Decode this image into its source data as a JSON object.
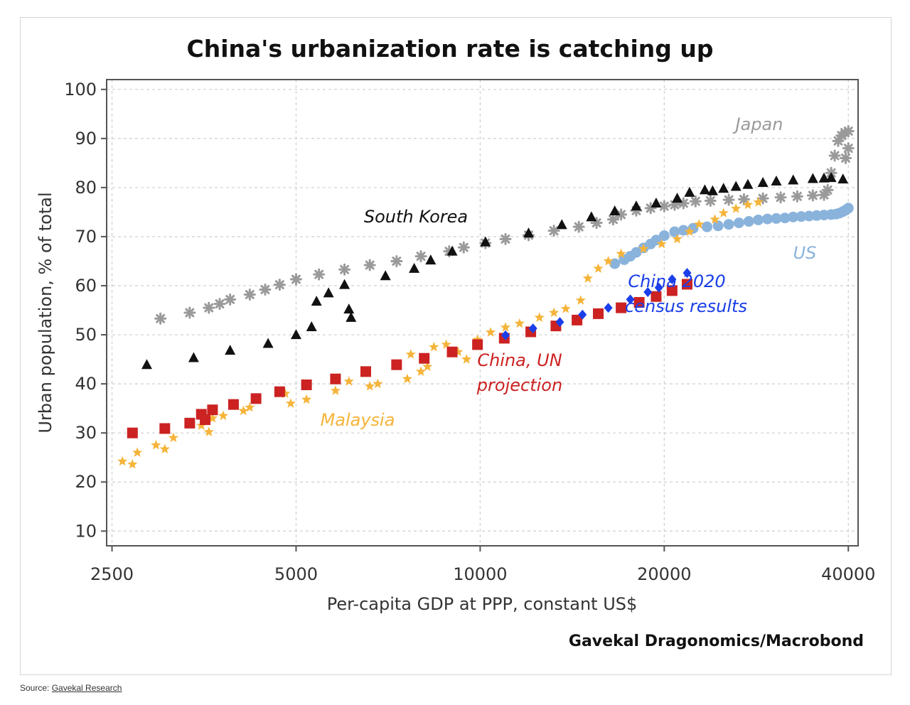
{
  "source": {
    "label": "Source:",
    "link_text": "Gavekal Research"
  },
  "chart_data": {
    "type": "scatter",
    "title": "China's urbanization rate is catching up",
    "xlabel": "Per-capita GDP at PPP, constant US$",
    "ylabel": "Urban population, % of total",
    "credit": "Gavekal Dragonomics/Macrobond",
    "x_scale": "log",
    "xlim": [
      2450,
      41500
    ],
    "ylim": [
      7,
      102
    ],
    "x_ticks": [
      2500,
      5000,
      10000,
      20000,
      40000
    ],
    "y_ticks": [
      10,
      20,
      30,
      40,
      50,
      60,
      70,
      80,
      90,
      100
    ],
    "grid": true,
    "series": [
      {
        "name": "Japan",
        "marker": "asterisk",
        "color": "#9a9a9a",
        "label_color": "#9a9a9a",
        "points": [
          [
            3000,
            53.3
          ],
          [
            3350,
            54.5
          ],
          [
            3600,
            55.5
          ],
          [
            3750,
            56.3
          ],
          [
            3900,
            57.2
          ],
          [
            4200,
            58.2
          ],
          [
            4450,
            59.2
          ],
          [
            4700,
            60.2
          ],
          [
            5000,
            61.3
          ],
          [
            5450,
            62.3
          ],
          [
            6000,
            63.3
          ],
          [
            6600,
            64.2
          ],
          [
            7300,
            65.0
          ],
          [
            8000,
            66.0
          ],
          [
            8900,
            67.0
          ],
          [
            9400,
            67.8
          ],
          [
            10200,
            68.7
          ],
          [
            11000,
            69.5
          ],
          [
            12000,
            70.3
          ],
          [
            13200,
            71.2
          ],
          [
            14500,
            72.0
          ],
          [
            15500,
            72.8
          ],
          [
            16500,
            73.5
          ],
          [
            17000,
            74.5
          ],
          [
            18000,
            75.3
          ],
          [
            19000,
            75.8
          ],
          [
            20000,
            76.2
          ],
          [
            20800,
            76.5
          ],
          [
            21500,
            76.8
          ],
          [
            22500,
            77.2
          ],
          [
            23800,
            77.3
          ],
          [
            25500,
            77.5
          ],
          [
            27000,
            77.6
          ],
          [
            29000,
            77.8
          ],
          [
            31000,
            78.0
          ],
          [
            33000,
            78.2
          ],
          [
            35000,
            78.4
          ],
          [
            36500,
            78.5
          ],
          [
            37000,
            79.5
          ],
          [
            37500,
            83.0
          ],
          [
            38000,
            86.5
          ],
          [
            38500,
            89.5
          ],
          [
            39000,
            90.6
          ],
          [
            39500,
            91.2
          ],
          [
            40000,
            91.5
          ],
          [
            40000,
            88.0
          ],
          [
            39600,
            86.0
          ]
        ]
      },
      {
        "name": "South Korea",
        "marker": "triangle",
        "color": "#111111",
        "label_color": "#111111",
        "points": [
          [
            2850,
            43.9
          ],
          [
            3400,
            45.3
          ],
          [
            3900,
            46.8
          ],
          [
            4500,
            48.2
          ],
          [
            5000,
            50.0
          ],
          [
            5300,
            51.6
          ],
          [
            5400,
            56.8
          ],
          [
            5650,
            58.5
          ],
          [
            6000,
            60.2
          ],
          [
            6100,
            55.2
          ],
          [
            6150,
            53.5
          ],
          [
            7000,
            62.0
          ],
          [
            7800,
            63.5
          ],
          [
            8300,
            65.2
          ],
          [
            9000,
            67.0
          ],
          [
            10200,
            68.9
          ],
          [
            12000,
            70.7
          ],
          [
            13600,
            72.4
          ],
          [
            15200,
            74.0
          ],
          [
            16600,
            75.2
          ],
          [
            18000,
            76.2
          ],
          [
            19400,
            76.8
          ],
          [
            21000,
            77.8
          ],
          [
            22000,
            79.0
          ],
          [
            23300,
            79.5
          ],
          [
            24000,
            79.3
          ],
          [
            25000,
            79.8
          ],
          [
            26200,
            80.2
          ],
          [
            27400,
            80.6
          ],
          [
            29000,
            81.0
          ],
          [
            30500,
            81.3
          ],
          [
            32500,
            81.5
          ],
          [
            35000,
            81.8
          ],
          [
            36500,
            81.9
          ],
          [
            37500,
            82.0
          ],
          [
            39200,
            81.7
          ]
        ]
      },
      {
        "name": "US",
        "marker": "circle",
        "color": "#8ab3dc",
        "label_color": "#8ab3dc",
        "points": [
          [
            16600,
            64.5
          ],
          [
            17200,
            65.3
          ],
          [
            17600,
            66.0
          ],
          [
            18000,
            66.8
          ],
          [
            18500,
            67.7
          ],
          [
            19000,
            68.5
          ],
          [
            19400,
            69.3
          ],
          [
            20000,
            70.2
          ],
          [
            20800,
            71.0
          ],
          [
            21500,
            71.3
          ],
          [
            22300,
            71.7
          ],
          [
            23500,
            72.0
          ],
          [
            24500,
            72.2
          ],
          [
            25500,
            72.5
          ],
          [
            26500,
            72.8
          ],
          [
            27500,
            73.1
          ],
          [
            28500,
            73.4
          ],
          [
            29500,
            73.6
          ],
          [
            30500,
            73.7
          ],
          [
            31500,
            73.8
          ],
          [
            32500,
            74.0
          ],
          [
            33500,
            74.1
          ],
          [
            34500,
            74.2
          ],
          [
            35500,
            74.3
          ],
          [
            36500,
            74.4
          ],
          [
            37500,
            74.5
          ],
          [
            38200,
            74.6
          ],
          [
            38700,
            74.8
          ],
          [
            39200,
            75.1
          ],
          [
            39600,
            75.4
          ],
          [
            40000,
            75.8
          ]
        ]
      },
      {
        "name": "Malaysia",
        "marker": "star",
        "color": "#f5b43a",
        "label_color": "#f5b43a",
        "points": [
          [
            2600,
            24.2
          ],
          [
            2700,
            23.6
          ],
          [
            2750,
            26.0
          ],
          [
            2950,
            27.5
          ],
          [
            3050,
            26.7
          ],
          [
            3150,
            29.0
          ],
          [
            3500,
            31.5
          ],
          [
            3600,
            30.2
          ],
          [
            3650,
            33.0
          ],
          [
            3800,
            33.5
          ],
          [
            4100,
            34.5
          ],
          [
            4200,
            35.2
          ],
          [
            4800,
            38.0
          ],
          [
            4900,
            36.0
          ],
          [
            5200,
            36.8
          ],
          [
            5800,
            38.6
          ],
          [
            6100,
            40.5
          ],
          [
            6600,
            39.5
          ],
          [
            6800,
            40.0
          ],
          [
            7600,
            41.0
          ],
          [
            7700,
            46.0
          ],
          [
            8000,
            42.5
          ],
          [
            8200,
            43.5
          ],
          [
            8400,
            47.5
          ],
          [
            8800,
            48.0
          ],
          [
            9200,
            46.5
          ],
          [
            9500,
            45.0
          ],
          [
            9900,
            49.0
          ],
          [
            10400,
            50.5
          ],
          [
            11000,
            51.5
          ],
          [
            11600,
            52.3
          ],
          [
            12500,
            53.5
          ],
          [
            13200,
            54.5
          ],
          [
            13800,
            55.3
          ],
          [
            14600,
            57.0
          ],
          [
            15000,
            61.5
          ],
          [
            15600,
            63.5
          ],
          [
            16200,
            65.0
          ],
          [
            17000,
            66.5
          ],
          [
            18500,
            67.5
          ],
          [
            19800,
            68.5
          ],
          [
            21000,
            69.5
          ],
          [
            22000,
            71.0
          ],
          [
            22800,
            72.5
          ],
          [
            24200,
            73.5
          ],
          [
            25000,
            74.8
          ],
          [
            26200,
            75.7
          ],
          [
            27400,
            76.5
          ],
          [
            28500,
            77.0
          ]
        ]
      },
      {
        "name": "China, UN projection",
        "marker": "square",
        "color": "#cc2222",
        "label_color": "#cc2222",
        "points": [
          [
            2700,
            30.0
          ],
          [
            3050,
            30.9
          ],
          [
            3350,
            32.0
          ],
          [
            3500,
            33.8
          ],
          [
            3550,
            32.7
          ],
          [
            3650,
            34.7
          ],
          [
            3950,
            35.8
          ],
          [
            4300,
            37.0
          ],
          [
            4700,
            38.4
          ],
          [
            5200,
            39.8
          ],
          [
            5800,
            41.0
          ],
          [
            6500,
            42.5
          ],
          [
            7300,
            43.9
          ],
          [
            8100,
            45.2
          ],
          [
            9000,
            46.5
          ],
          [
            9900,
            48.0
          ],
          [
            10950,
            49.3
          ],
          [
            12100,
            50.6
          ],
          [
            13300,
            51.8
          ],
          [
            14400,
            53.0
          ],
          [
            15600,
            54.3
          ],
          [
            17000,
            55.5
          ],
          [
            18200,
            56.6
          ],
          [
            19400,
            57.8
          ],
          [
            20600,
            59.0
          ],
          [
            21800,
            60.3
          ]
        ]
      },
      {
        "name": "China 2020 census results",
        "marker": "diamond",
        "color": "#1a3ee8",
        "label_color": "#1a3ee8",
        "points": [
          [
            11000,
            49.9
          ],
          [
            12200,
            51.3
          ],
          [
            13500,
            52.6
          ],
          [
            14700,
            54.1
          ],
          [
            16200,
            55.5
          ],
          [
            17600,
            57.2
          ],
          [
            18800,
            58.7
          ],
          [
            19600,
            59.6
          ],
          [
            20600,
            61.3
          ],
          [
            21800,
            62.6
          ]
        ]
      }
    ],
    "annotations": [
      {
        "text": "Japan",
        "series": "Japan"
      },
      {
        "text": "South Korea",
        "series": "South Korea"
      },
      {
        "text": "US",
        "series": "US"
      },
      {
        "text": "China 2020",
        "series": "China 2020 census results"
      },
      {
        "text": "census results",
        "series": "China 2020 census results"
      },
      {
        "text": "China, UN",
        "series": "China, UN projection"
      },
      {
        "text": "projection",
        "series": "China, UN projection"
      },
      {
        "text": "Malaysia",
        "series": "Malaysia"
      }
    ]
  }
}
